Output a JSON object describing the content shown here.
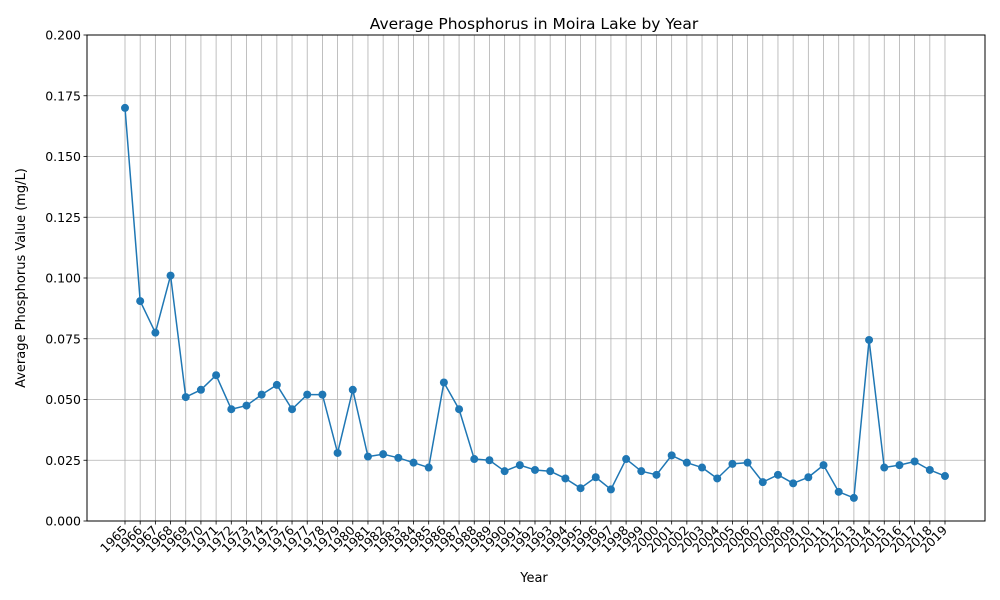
{
  "chart_data": {
    "type": "line",
    "title": "Average Phosphorus in Moira Lake by Year",
    "xlabel": "Year",
    "ylabel": "Average Phosphorus Value (mg/L)",
    "ylim": [
      0,
      0.2
    ],
    "yticks": [
      "0.000",
      "0.025",
      "0.050",
      "0.075",
      "0.100",
      "0.125",
      "0.150",
      "0.175",
      "0.200"
    ],
    "grid": true,
    "color": "#1f77b4",
    "categories": [
      "1965",
      "1966",
      "1967",
      "1968",
      "1969",
      "1970",
      "1971",
      "1972",
      "1973",
      "1974",
      "1975",
      "1976",
      "1977",
      "1978",
      "1979",
      "1980",
      "1981",
      "1982",
      "1983",
      "1984",
      "1985",
      "1986",
      "1987",
      "1988",
      "1989",
      "1990",
      "1991",
      "1992",
      "1993",
      "1994",
      "1995",
      "1996",
      "1997",
      "1998",
      "1999",
      "2000",
      "2001",
      "2002",
      "2003",
      "2004",
      "2005",
      "2006",
      "2007",
      "2008",
      "2009",
      "2010",
      "2011",
      "2012",
      "2013",
      "2014",
      "2015",
      "2016",
      "2017",
      "2018",
      "2019"
    ],
    "values": [
      0.17,
      0.0905,
      0.0775,
      0.101,
      0.051,
      0.054,
      0.06,
      0.046,
      0.0475,
      0.052,
      0.056,
      0.046,
      0.052,
      0.052,
      0.028,
      0.054,
      0.0265,
      0.0275,
      0.026,
      0.024,
      0.022,
      0.057,
      0.046,
      0.0255,
      0.025,
      0.0205,
      0.023,
      0.021,
      0.0205,
      0.0175,
      0.0135,
      0.018,
      0.013,
      0.0255,
      0.0205,
      0.019,
      0.027,
      0.024,
      0.022,
      0.0175,
      0.0235,
      0.024,
      0.016,
      0.019,
      0.0155,
      0.018,
      0.023,
      0.012,
      0.0095,
      0.0745,
      0.022,
      0.023,
      0.0245,
      0.021,
      0.0185
    ]
  }
}
